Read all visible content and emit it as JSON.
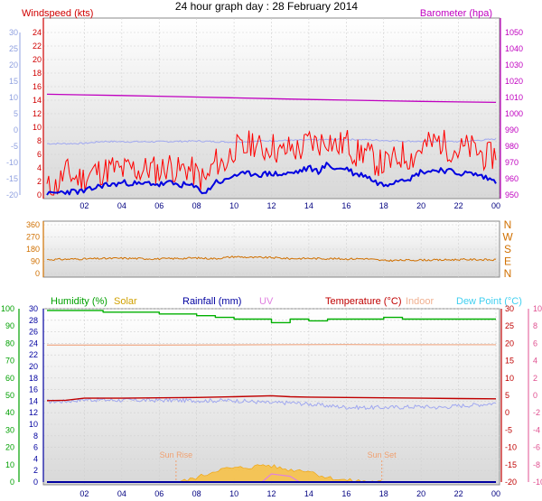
{
  "chart_data": [
    {
      "title": "24 hour graph day : 28 February 2014",
      "type": "line",
      "panel": "wind-pressure",
      "x_ticks": [
        "02",
        "04",
        "06",
        "08",
        "10",
        "12",
        "14",
        "16",
        "18",
        "20",
        "22",
        "00"
      ],
      "x_range": [
        0,
        24
      ],
      "left_inner_label": "Windspeed (kts)",
      "left_inner_ticks": [
        0,
        2,
        4,
        6,
        8,
        10,
        12,
        14,
        16,
        18,
        20,
        22,
        24
      ],
      "left_inner_color": "#d00000",
      "left_outer_ticks": [
        30,
        25,
        20,
        15,
        10,
        5,
        0,
        -5,
        -10,
        -15,
        -20
      ],
      "left_outer_color": "#8fa0e0",
      "right_label": "Barometer (hpa)",
      "right_ticks": [
        1050,
        1040,
        1030,
        1020,
        1010,
        1000,
        990,
        980,
        970,
        960,
        950
      ],
      "right_color": "#c000c0",
      "series": [
        {
          "name": "Barometer (hpa)",
          "color": "#c000c0",
          "axis": "pressure",
          "x": [
            0,
            2,
            4,
            6,
            8,
            10,
            12,
            14,
            16,
            18,
            20,
            22,
            24
          ],
          "y": [
            1012,
            1011.6,
            1011.2,
            1010.8,
            1010.3,
            1009.8,
            1009.3,
            1008.8,
            1008.4,
            1008.0,
            1007.6,
            1007.3,
            1007.0
          ]
        },
        {
          "name": "Temperature (outer scale)",
          "color": "#a0a8f0",
          "axis": "outer",
          "x": [
            0,
            1,
            2,
            3,
            4,
            5,
            6,
            7,
            8,
            9,
            10,
            11,
            12,
            13,
            14,
            15,
            16,
            17,
            18,
            19,
            20,
            21,
            22,
            23,
            24
          ],
          "y": [
            -4.2,
            -4.2,
            -4.1,
            -3.5,
            -3.6,
            -3.6,
            -3.6,
            -3.5,
            -3.4,
            -3.6,
            -3.7,
            -3.5,
            -3.3,
            -3.2,
            -3.1,
            -3.0,
            -2.9,
            -3.0,
            -3.2,
            -3.4,
            -3.5,
            -3.5,
            -3.6,
            -3.2,
            -2.8
          ]
        },
        {
          "name": "Wind gust (kts)",
          "color": "#ff0000",
          "axis": "wind",
          "x": [
            0,
            0.5,
            1,
            1.5,
            2,
            2.5,
            3,
            3.5,
            4,
            4.5,
            5,
            5.5,
            6,
            6.5,
            7,
            7.5,
            8,
            8.5,
            9,
            9.5,
            10,
            10.5,
            11,
            11.5,
            12,
            12.5,
            13,
            13.5,
            14,
            14.5,
            15,
            15.5,
            16,
            16.5,
            17,
            17.5,
            18,
            18.5,
            19,
            19.5,
            20,
            20.5,
            21,
            21.5,
            22,
            22.5,
            23,
            23.5,
            24
          ],
          "y": [
            1,
            1.2,
            3.5,
            2.5,
            2.5,
            3.5,
            3.5,
            4,
            3.5,
            4,
            3.5,
            4,
            3.5,
            4.5,
            3.5,
            4,
            3,
            2,
            5,
            4.5,
            7,
            6.5,
            8,
            6.5,
            7.5,
            6,
            7,
            6.5,
            8,
            7.5,
            8.5,
            7,
            8,
            6,
            6.5,
            5,
            4.5,
            5,
            6,
            5.5,
            7,
            7.5,
            8,
            7,
            6.5,
            7,
            6.5,
            5.5,
            6
          ]
        },
        {
          "name": "Average wind (kts)",
          "color": "#0000e0",
          "axis": "wind",
          "x": [
            0,
            0.5,
            1,
            1.5,
            2,
            2.5,
            3,
            3.5,
            4,
            4.5,
            5,
            5.5,
            6,
            6.5,
            7,
            7.5,
            8,
            8.5,
            9,
            9.5,
            10,
            10.5,
            11,
            11.5,
            12,
            12.5,
            13,
            13.5,
            14,
            14.5,
            15,
            15.5,
            16,
            16.5,
            17,
            17.5,
            18,
            18.5,
            19,
            19.5,
            20,
            20.5,
            21,
            21.5,
            22,
            22.5,
            23,
            23.5,
            24
          ],
          "y": [
            0,
            0.3,
            0.5,
            0.5,
            0.5,
            1,
            1.5,
            1.5,
            1.8,
            1.8,
            1.5,
            1.8,
            1.5,
            1.8,
            1.5,
            1.5,
            1,
            0.3,
            2,
            2,
            3,
            3,
            3.2,
            3,
            3.2,
            3,
            3.2,
            3.5,
            4,
            3.5,
            4.5,
            3.8,
            4,
            3,
            3,
            2,
            1.5,
            2,
            2.5,
            2.5,
            3.5,
            3.5,
            3.8,
            3.5,
            3.2,
            3.2,
            3,
            2.5,
            2
          ]
        }
      ]
    },
    {
      "type": "line",
      "panel": "wind-direction",
      "left_ticks": [
        360,
        270,
        180,
        90,
        0
      ],
      "right_labels": [
        "N",
        "W",
        "S",
        "E",
        "N"
      ],
      "series": [
        {
          "name": "Wind direction",
          "color": "#d07000",
          "x": [
            0,
            2,
            4,
            6,
            8,
            9,
            10,
            11,
            12,
            13,
            14,
            15,
            16,
            17,
            18,
            19,
            20,
            21,
            22,
            23,
            24
          ],
          "y": [
            103,
            108,
            113,
            108,
            115,
            110,
            125,
            118,
            118,
            110,
            112,
            110,
            108,
            110,
            95,
            98,
            100,
            100,
            103,
            103,
            100
          ]
        }
      ]
    },
    {
      "type": "line",
      "panel": "humidity-temperature",
      "legend": [
        {
          "label": "Humidity (%)",
          "color": "#00a000"
        },
        {
          "label": "Solar",
          "color": "#d0a000"
        },
        {
          "label": "Rainfall (mm)",
          "color": "#0000a0"
        },
        {
          "label": "UV",
          "color": "#e080e0"
        },
        {
          "label": "Temperature (°C)",
          "color": "#c00000"
        },
        {
          "label": "Indoor",
          "color": "#f0b090"
        },
        {
          "label": "Dew Point (°C)",
          "color": "#40d0f0"
        }
      ],
      "left_outer_ticks": [
        100,
        90,
        80,
        70,
        60,
        50,
        40,
        30,
        20,
        10,
        0
      ],
      "left_outer_color": "#00a000",
      "left_inner_ticks": [
        30,
        28,
        26,
        24,
        22,
        20,
        18,
        16,
        14,
        12,
        10,
        8,
        6,
        4,
        2,
        0
      ],
      "left_inner_color": "#0000a0",
      "right_inner_ticks": [
        30,
        25,
        20,
        15,
        10,
        5,
        0,
        -5,
        -10,
        -15,
        -20
      ],
      "right_inner_color": "#c00000",
      "right_outer_ticks": [
        10,
        8,
        6,
        4,
        2,
        0,
        -2,
        -4,
        -6,
        -8,
        -10
      ],
      "right_outer_color": "#e05090",
      "annotations": [
        {
          "text": "Sun Rise",
          "x": 6.9
        },
        {
          "text": "Sun Set",
          "x": 17.9
        }
      ],
      "series": [
        {
          "name": "Humidity (%)",
          "color": "#00b000",
          "x": [
            0,
            2,
            3,
            4,
            6,
            8,
            9,
            10,
            11,
            12,
            13,
            14,
            15,
            16,
            17,
            18,
            19,
            20,
            22,
            24
          ],
          "y": [
            99,
            99,
            98,
            98,
            97,
            96,
            95,
            94,
            94,
            92,
            94,
            93,
            94,
            94,
            94,
            95,
            94,
            94,
            94,
            94
          ]
        },
        {
          "name": "Indoor",
          "color": "#f0b090",
          "x": [
            0,
            6,
            12,
            16,
            18,
            24
          ],
          "y": [
            19.5,
            19.5,
            19.6,
            19.7,
            19.6,
            19.6
          ]
        },
        {
          "name": "Temperature (°C)",
          "color": "#c00000",
          "x": [
            0,
            1,
            2,
            4,
            6,
            8,
            10,
            12,
            13,
            14,
            16,
            18,
            20,
            22,
            24
          ],
          "y": [
            3.5,
            3.6,
            4.2,
            4.2,
            4.3,
            4.4,
            4.6,
            4.9,
            4.6,
            4.5,
            4.4,
            4.3,
            4.2,
            4.1,
            4.0
          ]
        },
        {
          "name": "Dew Point (°C)",
          "color": "#a0a8f0",
          "x": [
            0,
            1,
            2,
            4,
            6,
            8,
            10,
            11,
            12,
            13,
            14,
            15,
            16,
            17,
            18,
            19,
            20,
            21,
            22,
            23,
            24
          ],
          "y": [
            3.2,
            3.3,
            3.8,
            3.6,
            3.6,
            3.5,
            3.5,
            3.2,
            2.8,
            2.9,
            2.5,
            2.0,
            1.6,
            1.5,
            1.5,
            1.6,
            1.8,
            1.5,
            2.0,
            2.3,
            2.8
          ]
        },
        {
          "name": "Solar",
          "color": "#f8c040",
          "x": [
            6.9,
            7.5,
            8,
            8.5,
            9,
            9.5,
            10,
            10.5,
            11,
            11.5,
            12,
            12.5,
            13,
            13.5,
            14,
            14.5,
            15,
            16,
            17.9
          ],
          "y": [
            0,
            0.3,
            0.8,
            1.3,
            2.0,
            2.3,
            2.4,
            2.5,
            2.6,
            3.0,
            2.8,
            2.4,
            2.1,
            2.1,
            2.0,
            1.3,
            0.8,
            0.3,
            0
          ]
        },
        {
          "name": "UV",
          "color": "#e080e0",
          "x": [
            11.5,
            12,
            12.5,
            13,
            13.5
          ],
          "y": [
            0,
            1.4,
            1.2,
            1.0,
            0
          ]
        },
        {
          "name": "Rainfall (mm)",
          "color": "#0000a0",
          "x": [
            0,
            24
          ],
          "y": [
            0,
            0
          ]
        }
      ]
    }
  ]
}
